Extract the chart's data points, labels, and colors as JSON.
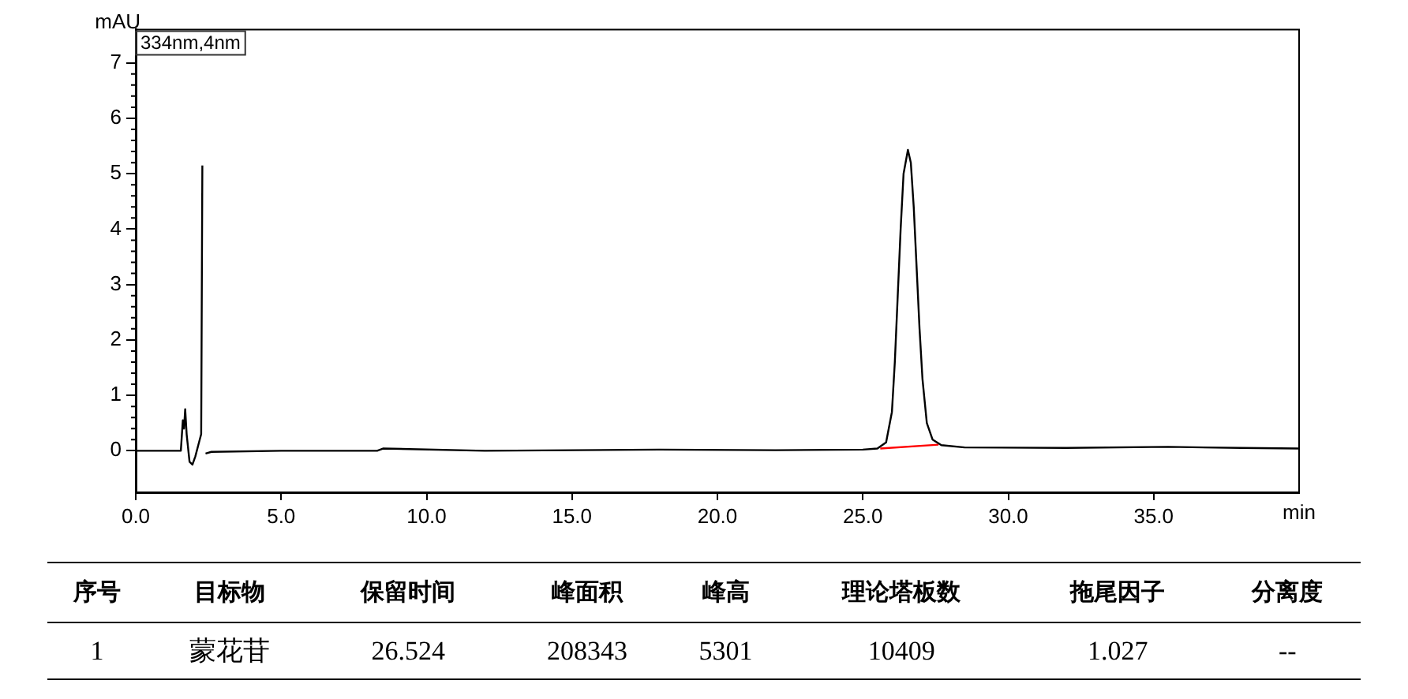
{
  "chart_data": [
    {
      "type": "line",
      "ylabel": "mAU",
      "xlabel": "min",
      "xlim": [
        0,
        40
      ],
      "ylim": [
        -0.75,
        7.6
      ],
      "xticks": [
        {
          "value": 0,
          "label": "0.0"
        },
        {
          "value": 5,
          "label": "5.0"
        },
        {
          "value": 10,
          "label": "10.0"
        },
        {
          "value": 15,
          "label": "15.0"
        },
        {
          "value": 20,
          "label": "20.0"
        },
        {
          "value": 25,
          "label": "25.0"
        },
        {
          "value": 30,
          "label": "30.0"
        },
        {
          "value": 35,
          "label": "35.0"
        }
      ],
      "yticks": [
        0,
        1,
        2,
        3,
        4,
        5,
        6,
        7
      ],
      "grid": false,
      "legend": "top left",
      "marker": "none",
      "line_style": "solid",
      "series": [
        {
          "name": "334nm,4nm",
          "color": "#000000",
          "x": [
            0,
            1.0,
            1.55,
            1.62,
            1.66,
            1.7,
            1.75,
            1.85,
            1.95,
            2.05,
            2.15,
            2.25,
            2.29,
            2.31,
            2.34,
            2.4,
            2.6,
            5,
            8.3,
            8.5,
            12,
            18,
            22,
            25,
            25.5,
            25.8,
            26.0,
            26.1,
            26.2,
            26.3,
            26.4,
            26.55,
            26.65,
            26.75,
            26.85,
            26.95,
            27.05,
            27.2,
            27.4,
            27.7,
            28.5,
            32,
            35.5,
            38,
            40
          ],
          "values": [
            0,
            0.0,
            0.0,
            0.55,
            0.4,
            0.75,
            0.3,
            -0.2,
            -0.25,
            -0.1,
            0.1,
            0.3,
            5.15,
            null,
            null,
            -0.05,
            -0.02,
            0,
            0,
            0.04,
            0,
            0.02,
            0.01,
            0.02,
            0.04,
            0.15,
            0.7,
            1.6,
            2.8,
            4.0,
            5.0,
            5.43,
            5.2,
            4.4,
            3.3,
            2.2,
            1.3,
            0.5,
            0.2,
            0.1,
            0.06,
            0.05,
            0.07,
            0.05,
            0.04
          ]
        },
        {
          "color": "#ff0000",
          "x": [
            25.6,
            27.6
          ],
          "values": [
            0.04,
            0.11
          ]
        }
      ]
    },
    {
      "type": "other",
      "categories": [
        "序号",
        "目标物",
        "保留时间",
        "峰面积",
        "峰高",
        "理论塔板数",
        "拖尾因子",
        "分离度"
      ],
      "annotations": [
        "1",
        "蒙花苷",
        "26.524",
        "208343",
        "5301",
        "10409",
        "1.027",
        "--"
      ]
    }
  ]
}
